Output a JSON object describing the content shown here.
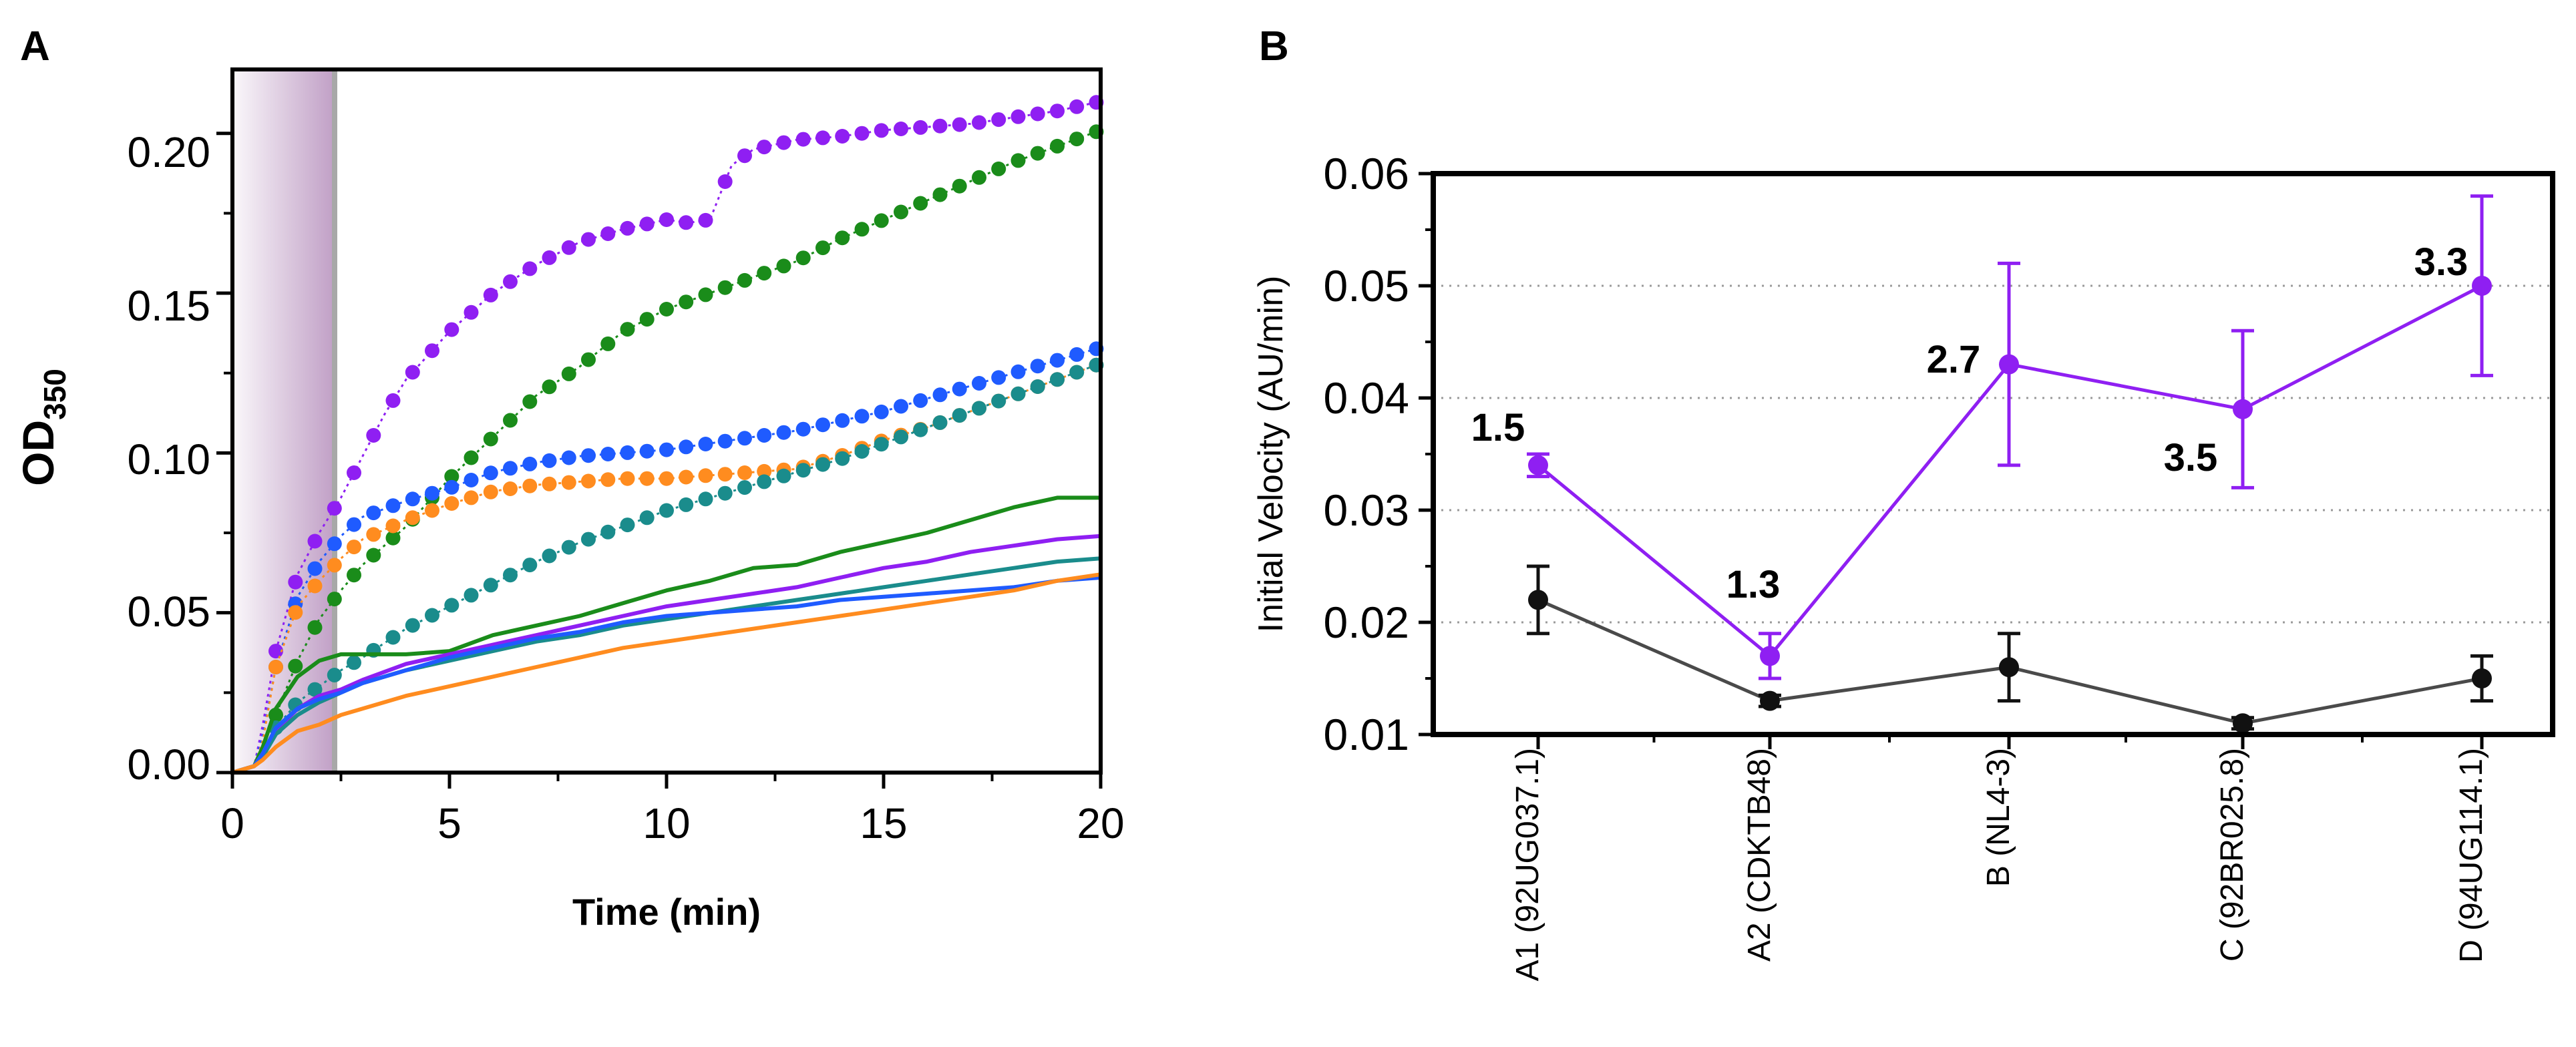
{
  "chart_data": [
    {
      "panel": "A",
      "type": "line",
      "title": "",
      "xlabel": "Time (min)",
      "ylabel_main": "OD",
      "ylabel_sub": "350",
      "xlim": [
        0,
        20
      ],
      "ylim": [
        0,
        0.22
      ],
      "xticks": [
        0,
        5,
        10,
        15,
        20
      ],
      "xtick_labels": [
        "0",
        "5",
        "10",
        "15",
        "20"
      ],
      "yticks": [
        0,
        0.05,
        0.1,
        0.15,
        0.2
      ],
      "ytick_labels": [
        "0.00",
        "0.05",
        "0.10",
        "0.15",
        "0.20"
      ],
      "shaded_region": {
        "x_start": 0,
        "x_end": 2.4,
        "color": "#8c4f96"
      },
      "series": [
        {
          "name": "purple dotted",
          "style": "dotted",
          "color": "#8f1ff2",
          "x": [
            0,
            0.5,
            0.7,
            1.0,
            1.5,
            2.0,
            2.5,
            3.0,
            3.5,
            4.0,
            5.0,
            6.0,
            7.0,
            8.0,
            9.0,
            10.0,
            10.5,
            11.0,
            11.5,
            12.0,
            13.0,
            14.0,
            15.0,
            16.0,
            17.0,
            18.0,
            19.0,
            20.0
          ],
          "y": [
            0,
            0.002,
            0.015,
            0.038,
            0.062,
            0.075,
            0.086,
            0.099,
            0.112,
            0.123,
            0.138,
            0.15,
            0.159,
            0.166,
            0.17,
            0.173,
            0.172,
            0.173,
            0.19,
            0.195,
            0.198,
            0.199,
            0.201,
            0.202,
            0.203,
            0.205,
            0.207,
            0.21
          ]
        },
        {
          "name": "green dotted",
          "style": "dotted",
          "color": "#1a8c1a",
          "x": [
            0,
            0.5,
            0.7,
            1.0,
            1.5,
            2.0,
            2.5,
            3.0,
            4.0,
            5.0,
            6.0,
            7.0,
            8.0,
            9.0,
            10.0,
            11.0,
            12.0,
            13.0,
            14.0,
            15.0,
            16.0,
            17.0,
            18.0,
            19.0,
            20.0
          ],
          "y": [
            0,
            0.002,
            0.008,
            0.018,
            0.035,
            0.048,
            0.057,
            0.065,
            0.077,
            0.092,
            0.105,
            0.118,
            0.127,
            0.138,
            0.145,
            0.15,
            0.155,
            0.16,
            0.167,
            0.173,
            0.179,
            0.185,
            0.191,
            0.196,
            0.201
          ]
        },
        {
          "name": "blue dotted",
          "style": "dotted",
          "color": "#1f5bff",
          "x": [
            0,
            0.5,
            0.7,
            1.0,
            1.5,
            2.0,
            2.5,
            3.0,
            4.0,
            5.0,
            6.0,
            7.0,
            8.0,
            9.0,
            10.0,
            11.0,
            12.0,
            13.0,
            14.0,
            15.0,
            16.0,
            17.0,
            18.0,
            19.0,
            20.0
          ],
          "y": [
            0,
            0.002,
            0.012,
            0.033,
            0.055,
            0.066,
            0.074,
            0.08,
            0.085,
            0.089,
            0.094,
            0.097,
            0.099,
            0.1,
            0.101,
            0.103,
            0.105,
            0.107,
            0.11,
            0.113,
            0.117,
            0.121,
            0.125,
            0.129,
            0.133
          ]
        },
        {
          "name": "orange dotted",
          "style": "dotted",
          "color": "#ff8c1f",
          "x": [
            0,
            0.5,
            0.7,
            1.0,
            1.5,
            2.0,
            2.5,
            3.0,
            4.0,
            5.0,
            6.0,
            7.0,
            8.0,
            9.0,
            10.0,
            11.0,
            12.0,
            13.0,
            14.0,
            15.0,
            16.0,
            17.0,
            18.0,
            19.0,
            20.0
          ],
          "y": [
            0,
            0.002,
            0.01,
            0.033,
            0.052,
            0.06,
            0.067,
            0.073,
            0.079,
            0.084,
            0.088,
            0.09,
            0.091,
            0.092,
            0.092,
            0.093,
            0.094,
            0.095,
            0.099,
            0.104,
            0.108,
            0.113,
            0.118,
            0.123,
            0.128
          ]
        },
        {
          "name": "teal dotted",
          "style": "dotted",
          "color": "#1a8c8c",
          "x": [
            0,
            0.5,
            0.7,
            1.0,
            1.5,
            2.0,
            2.5,
            3.0,
            4.0,
            5.0,
            6.0,
            7.0,
            8.0,
            9.0,
            10.0,
            11.0,
            12.0,
            13.0,
            14.0,
            15.0,
            16.0,
            17.0,
            18.0,
            19.0,
            20.0
          ],
          "y": [
            0,
            0.002,
            0.006,
            0.014,
            0.022,
            0.027,
            0.032,
            0.036,
            0.045,
            0.052,
            0.059,
            0.066,
            0.072,
            0.077,
            0.082,
            0.086,
            0.09,
            0.094,
            0.098,
            0.103,
            0.108,
            0.113,
            0.118,
            0.123,
            0.128
          ]
        },
        {
          "name": "green solid",
          "style": "solid",
          "color": "#1a8c1a",
          "x": [
            0,
            0.5,
            0.7,
            1.0,
            1.5,
            2.0,
            2.5,
            3.0,
            4.0,
            5.0,
            6.0,
            7.0,
            8.0,
            9.0,
            10.0,
            11.0,
            12.0,
            13.0,
            14.0,
            15.0,
            16.0,
            17.0,
            18.0,
            19.0,
            20.0
          ],
          "y": [
            0,
            0.002,
            0.008,
            0.02,
            0.03,
            0.035,
            0.037,
            0.037,
            0.037,
            0.038,
            0.043,
            0.046,
            0.049,
            0.053,
            0.057,
            0.06,
            0.064,
            0.065,
            0.069,
            0.072,
            0.075,
            0.079,
            0.083,
            0.086,
            0.086
          ]
        },
        {
          "name": "purple solid",
          "style": "solid",
          "color": "#8f1ff2",
          "x": [
            0,
            0.5,
            0.7,
            1.0,
            1.5,
            2.0,
            2.5,
            3.0,
            4.0,
            5.0,
            6.0,
            7.0,
            8.0,
            9.0,
            10.0,
            11.0,
            12.0,
            13.0,
            14.0,
            15.0,
            16.0,
            17.0,
            18.0,
            19.0,
            20.0
          ],
          "y": [
            0,
            0.002,
            0.006,
            0.013,
            0.02,
            0.024,
            0.026,
            0.029,
            0.034,
            0.037,
            0.04,
            0.043,
            0.046,
            0.049,
            0.052,
            0.054,
            0.056,
            0.058,
            0.061,
            0.064,
            0.066,
            0.069,
            0.071,
            0.073,
            0.074
          ]
        },
        {
          "name": "teal solid",
          "style": "solid",
          "color": "#1a8c8c",
          "x": [
            0,
            0.5,
            0.7,
            1.0,
            1.5,
            2.0,
            2.5,
            3.0,
            4.0,
            5.0,
            6.0,
            7.0,
            8.0,
            9.0,
            10.0,
            11.0,
            12.0,
            13.0,
            14.0,
            15.0,
            16.0,
            17.0,
            18.0,
            19.0,
            20.0
          ],
          "y": [
            0,
            0.002,
            0.005,
            0.012,
            0.018,
            0.022,
            0.025,
            0.028,
            0.032,
            0.035,
            0.038,
            0.041,
            0.043,
            0.046,
            0.048,
            0.05,
            0.052,
            0.054,
            0.056,
            0.058,
            0.06,
            0.062,
            0.064,
            0.066,
            0.067
          ]
        },
        {
          "name": "blue solid",
          "style": "solid",
          "color": "#1f5bff",
          "x": [
            0,
            0.5,
            0.7,
            1.0,
            1.5,
            2.0,
            2.5,
            3.0,
            4.0,
            5.0,
            6.0,
            7.0,
            8.0,
            9.0,
            10.0,
            11.0,
            12.0,
            13.0,
            14.0,
            15.0,
            16.0,
            17.0,
            18.0,
            19.0,
            20.0
          ],
          "y": [
            0,
            0.002,
            0.006,
            0.014,
            0.02,
            0.023,
            0.025,
            0.028,
            0.032,
            0.036,
            0.039,
            0.042,
            0.044,
            0.047,
            0.049,
            0.05,
            0.051,
            0.052,
            0.054,
            0.055,
            0.056,
            0.057,
            0.058,
            0.06,
            0.061
          ]
        },
        {
          "name": "orange solid",
          "style": "solid",
          "color": "#ff8c1f",
          "x": [
            0,
            0.5,
            0.7,
            1.0,
            1.5,
            2.0,
            2.5,
            3.0,
            4.0,
            5.0,
            6.0,
            7.0,
            8.0,
            9.0,
            10.0,
            11.0,
            12.0,
            13.0,
            14.0,
            15.0,
            16.0,
            17.0,
            18.0,
            19.0,
            20.0
          ],
          "y": [
            0,
            0.002,
            0.004,
            0.008,
            0.013,
            0.015,
            0.018,
            0.02,
            0.024,
            0.027,
            0.03,
            0.033,
            0.036,
            0.039,
            0.041,
            0.043,
            0.045,
            0.047,
            0.049,
            0.051,
            0.053,
            0.055,
            0.057,
            0.06,
            0.062
          ]
        }
      ]
    },
    {
      "panel": "B",
      "type": "line",
      "title": "",
      "xlabel": "",
      "ylabel": "Initial Velocity (AU/min)",
      "categories": [
        "A1 (92UG037.1)",
        "A2 (CDKTB48)",
        "B (NL4-3)",
        "C (92BR025.8)",
        "D (94UG114.1)"
      ],
      "ylim": [
        0.01,
        0.06
      ],
      "yticks": [
        0.01,
        0.02,
        0.03,
        0.04,
        0.05,
        0.06
      ],
      "ytick_labels": [
        "0.01",
        "0.02",
        "0.03",
        "0.04",
        "0.05",
        "0.06"
      ],
      "grid": "horizontal dotted",
      "series": [
        {
          "name": "purple",
          "color": "#8f1ff2",
          "values": [
            0.034,
            0.017,
            0.043,
            0.039,
            0.05
          ],
          "errors": [
            0.001,
            0.002,
            0.009,
            0.007,
            0.008
          ]
        },
        {
          "name": "black",
          "color": "#111111",
          "values": [
            0.022,
            0.013,
            0.016,
            0.011,
            0.015
          ],
          "errors": [
            0.003,
            0.0005,
            0.003,
            0.0005,
            0.002
          ]
        }
      ],
      "annotations": [
        "1.5",
        "1.3",
        "2.7",
        "3.5",
        "3.3"
      ]
    }
  ]
}
